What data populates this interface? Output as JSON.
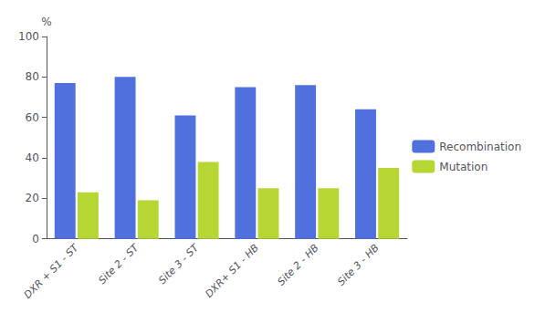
{
  "chart_data": {
    "type": "bar",
    "categories": [
      "DXR + S1 - ST",
      "Site 2 - ST",
      "Site 3 - ST",
      "DXR+ S1 - HB",
      "Site 2 - HB",
      "Site 3 - HB"
    ],
    "series": [
      {
        "name": "Recombination",
        "values": [
          77,
          80,
          61,
          75,
          76,
          64
        ]
      },
      {
        "name": "Mutation",
        "values": [
          23,
          19,
          38,
          25,
          25,
          35
        ]
      }
    ],
    "ylabel": "%",
    "ylim": [
      0,
      100
    ],
    "yticks": [
      0,
      20,
      40,
      60,
      80,
      100
    ],
    "grid": false,
    "legend": "right"
  }
}
